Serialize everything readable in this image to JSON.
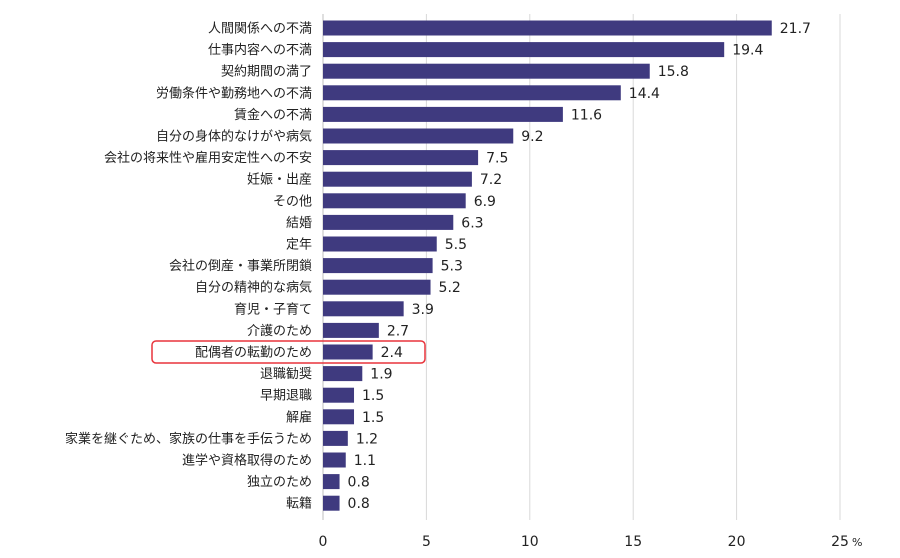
{
  "chart_data": {
    "type": "bar",
    "orientation": "horizontal",
    "categories": [
      "人間関係への不満",
      "仕事内容への不満",
      "契約期間の満了",
      "労働条件や勤務地への不満",
      "賃金への不満",
      "自分の身体的なけがや病気",
      "会社の将来性や雇用安定性への不安",
      "妊娠・出産",
      "その他",
      "結婚",
      "定年",
      "会社の倒産・事業所閉鎖",
      "自分の精神的な病気",
      "育児・子育て",
      "介護のため",
      "配偶者の転勤のため",
      "退職勧奨",
      "早期退職",
      "解雇",
      "家業を継ぐため、家族の仕事を手伝うため",
      "進学や資格取得のため",
      "独立のため",
      "転籍"
    ],
    "values": [
      21.7,
      19.4,
      15.8,
      14.4,
      11.6,
      9.2,
      7.5,
      7.2,
      6.9,
      6.3,
      5.5,
      5.3,
      5.2,
      3.9,
      2.7,
      2.4,
      1.9,
      1.5,
      1.5,
      1.2,
      1.1,
      0.8,
      0.8
    ],
    "value_labels": [
      "21.7",
      "19.4",
      "15.8",
      "14.4",
      "11.6",
      "9.2",
      "7.5",
      "7.2",
      "6.9",
      "6.3",
      "5.5",
      "5.3",
      "5.2",
      "3.9",
      "2.7",
      "2.4",
      "1.9",
      "1.5",
      "1.5",
      "1.2",
      "1.1",
      "0.8",
      "0.8"
    ],
    "xticks": [
      "0",
      "5",
      "10",
      "15",
      "20",
      "25"
    ],
    "xlim": [
      0,
      25
    ],
    "unit": "%",
    "grid": true,
    "bar_color": "#3f3a7f",
    "highlight_index": 15,
    "highlight_color": "#e8343c"
  }
}
